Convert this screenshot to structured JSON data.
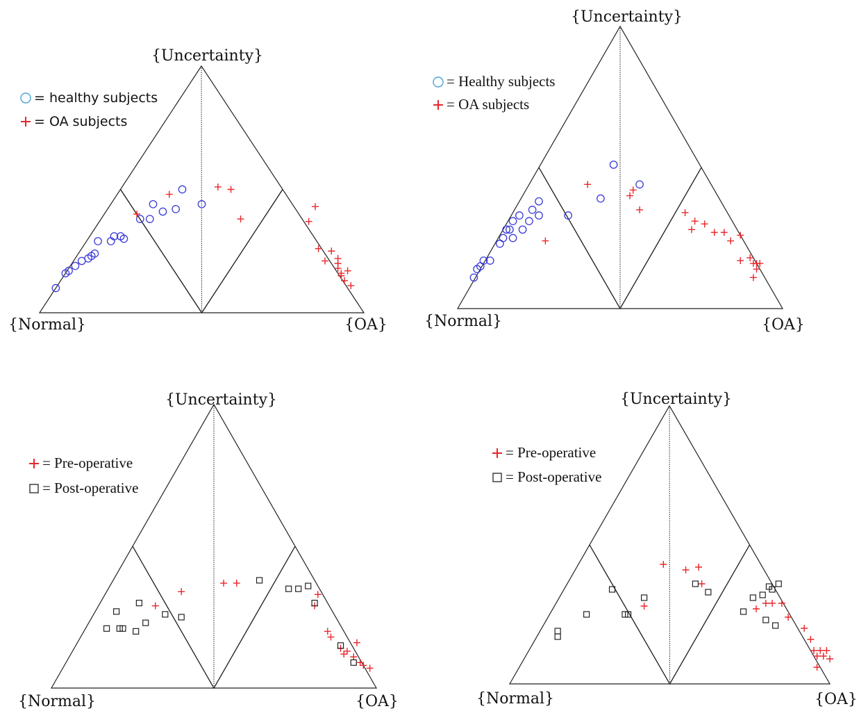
{
  "colors": {
    "healthy": "#3b3bd9",
    "healthy_legend": "#4aa3d9",
    "oa": "#e8262a",
    "post": "#222222",
    "frame": "#222222"
  },
  "chart_data": [
    {
      "type": "scatter",
      "coordinate_system": "ternary (Normal, Uncertainty, OA)",
      "vertex_labels": {
        "left": "{Normal}",
        "top": "{Uncertainty}",
        "right": "{OA}"
      },
      "legend": [
        {
          "symbol": "circle-icon",
          "text": "= healthy subjects"
        },
        {
          "symbol": "plus-icon",
          "text": "= OA subjects"
        }
      ],
      "series": [
        {
          "name": "healthy subjects",
          "marker": "circle",
          "points": [
            [
              0.05,
              0.1
            ],
            [
              0.08,
              0.16
            ],
            [
              0.09,
              0.17
            ],
            [
              0.11,
              0.19
            ],
            [
              0.13,
              0.21
            ],
            [
              0.15,
              0.22
            ],
            [
              0.16,
              0.23
            ],
            [
              0.17,
              0.24
            ],
            [
              0.18,
              0.29
            ],
            [
              0.22,
              0.29
            ],
            [
              0.23,
              0.31
            ],
            [
              0.25,
              0.31
            ],
            [
              0.26,
              0.3
            ],
            [
              0.31,
              0.38
            ],
            [
              0.34,
              0.38
            ],
            [
              0.35,
              0.44
            ],
            [
              0.38,
              0.41
            ],
            [
              0.42,
              0.42
            ],
            [
              0.44,
              0.5
            ],
            [
              0.5,
              0.44
            ]
          ]
        },
        {
          "name": "OA subjects",
          "marker": "plus",
          "points": [
            [
              0.3,
              0.4
            ],
            [
              0.4,
              0.48
            ],
            [
              0.55,
              0.51
            ],
            [
              0.59,
              0.5
            ],
            [
              0.62,
              0.38
            ],
            [
              0.83,
              0.37
            ],
            [
              0.85,
              0.43
            ],
            [
              0.86,
              0.26
            ],
            [
              0.9,
              0.25
            ],
            [
              0.88,
              0.21
            ],
            [
              0.92,
              0.22
            ],
            [
              0.93,
              0.16
            ],
            [
              0.93,
              0.15
            ],
            [
              0.94,
              0.13
            ],
            [
              0.95,
              0.17
            ],
            [
              0.92,
              0.18
            ],
            [
              0.96,
              0.11
            ],
            [
              0.92,
              0.2
            ]
          ]
        }
      ]
    },
    {
      "type": "scatter",
      "coordinate_system": "ternary (Normal, Uncertainty, OA)",
      "vertex_labels": {
        "left": "{Normal}",
        "top": "{Uncertainty}",
        "right": "{OA}"
      },
      "legend": [
        {
          "symbol": "circle-icon",
          "text": "= Healthy subjects"
        },
        {
          "symbol": "plus-icon",
          "text": "= OA subjects"
        }
      ],
      "series": [
        {
          "name": "Healthy subjects",
          "marker": "circle",
          "points": [
            [
              0.05,
              0.11
            ],
            [
              0.06,
              0.14
            ],
            [
              0.07,
              0.15
            ],
            [
              0.08,
              0.17
            ],
            [
              0.1,
              0.17
            ],
            [
              0.13,
              0.23
            ],
            [
              0.15,
              0.28
            ],
            [
              0.14,
              0.25
            ],
            [
              0.16,
              0.28
            ],
            [
              0.17,
              0.25
            ],
            [
              0.17,
              0.31
            ],
            [
              0.19,
              0.33
            ],
            [
              0.2,
              0.28
            ],
            [
              0.22,
              0.31
            ],
            [
              0.23,
              0.35
            ],
            [
              0.25,
              0.33
            ],
            [
              0.25,
              0.38
            ],
            [
              0.34,
              0.33
            ],
            [
              0.44,
              0.39
            ],
            [
              0.48,
              0.51
            ],
            [
              0.56,
              0.44
            ]
          ]
        },
        {
          "name": "OA subjects",
          "marker": "plus",
          "points": [
            [
              0.27,
              0.24
            ],
            [
              0.4,
              0.44
            ],
            [
              0.53,
              0.4
            ],
            [
              0.54,
              0.42
            ],
            [
              0.56,
              0.35
            ],
            [
              0.7,
              0.34
            ],
            [
              0.72,
              0.28
            ],
            [
              0.73,
              0.31
            ],
            [
              0.76,
              0.3
            ],
            [
              0.79,
              0.27
            ],
            [
              0.82,
              0.27
            ],
            [
              0.84,
              0.24
            ],
            [
              0.87,
              0.26
            ],
            [
              0.87,
              0.17
            ],
            [
              0.9,
              0.18
            ],
            [
              0.91,
              0.16
            ],
            [
              0.93,
              0.16
            ],
            [
              0.92,
              0.16
            ],
            [
              0.92,
              0.14
            ],
            [
              0.91,
              0.11
            ]
          ]
        }
      ]
    },
    {
      "type": "scatter",
      "coordinate_system": "ternary (Normal, Uncertainty, OA)",
      "vertex_labels": {
        "left": "{Normal}",
        "top": "{Uncertainty}",
        "right": "{OA}"
      },
      "legend": [
        {
          "symbol": "plus-icon",
          "text": "= Pre-operative"
        },
        {
          "symbol": "square-icon",
          "text": "= Post-operative"
        }
      ],
      "series": [
        {
          "name": "Pre-operative",
          "marker": "plus",
          "points": [
            [
              0.32,
              0.29
            ],
            [
              0.4,
              0.34
            ],
            [
              0.53,
              0.37
            ],
            [
              0.57,
              0.37
            ],
            [
              0.82,
              0.33
            ],
            [
              0.81,
              0.29
            ],
            [
              0.85,
              0.2
            ],
            [
              0.86,
              0.18
            ],
            [
              0.89,
              0.14
            ],
            [
              0.9,
              0.12
            ],
            [
              0.91,
              0.13
            ],
            [
              0.93,
              0.11
            ],
            [
              0.95,
              0.09
            ],
            [
              0.96,
              0.08
            ],
            [
              0.98,
              0.07
            ],
            [
              0.94,
              0.16
            ]
          ]
        },
        {
          "name": "Post-operative",
          "marker": "square",
          "points": [
            [
              0.2,
              0.27
            ],
            [
              0.17,
              0.21
            ],
            [
              0.21,
              0.21
            ],
            [
              0.22,
              0.21
            ],
            [
              0.26,
              0.2
            ],
            [
              0.29,
              0.23
            ],
            [
              0.27,
              0.3
            ],
            [
              0.35,
              0.26
            ],
            [
              0.4,
              0.25
            ],
            [
              0.64,
              0.38
            ],
            [
              0.73,
              0.35
            ],
            [
              0.76,
              0.35
            ],
            [
              0.79,
              0.36
            ],
            [
              0.81,
              0.3
            ],
            [
              0.89,
              0.15
            ],
            [
              0.93,
              0.09
            ]
          ]
        }
      ]
    },
    {
      "type": "scatter",
      "coordinate_system": "ternary (Normal, Uncertainty, OA)",
      "vertex_labels": {
        "left": "{Normal}",
        "top": "{Uncertainty}",
        "right": "{OA}"
      },
      "legend": [
        {
          "symbol": "plus-icon",
          "text": "= Pre-operative"
        },
        {
          "symbol": "square-icon",
          "text": "= Post-operative"
        }
      ],
      "series": [
        {
          "name": "Pre-operative",
          "marker": "plus",
          "points": [
            [
              0.42,
              0.28
            ],
            [
              0.48,
              0.43
            ],
            [
              0.55,
              0.41
            ],
            [
              0.59,
              0.42
            ],
            [
              0.6,
              0.36
            ],
            [
              0.77,
              0.27
            ],
            [
              0.8,
              0.29
            ],
            [
              0.82,
              0.29
            ],
            [
              0.85,
              0.29
            ],
            [
              0.87,
              0.24
            ],
            [
              0.92,
              0.2
            ],
            [
              0.94,
              0.16
            ],
            [
              0.95,
              0.12
            ],
            [
              0.96,
              0.1
            ],
            [
              0.97,
              0.12
            ],
            [
              0.98,
              0.1
            ],
            [
              0.99,
              0.12
            ],
            [
              1.0,
              0.09
            ],
            [
              0.96,
              0.06
            ]
          ]
        },
        {
          "name": "Post-operative",
          "marker": "square",
          "points": [
            [
              0.15,
              0.17
            ],
            [
              0.15,
              0.19
            ],
            [
              0.24,
              0.25
            ],
            [
              0.32,
              0.34
            ],
            [
              0.36,
              0.25
            ],
            [
              0.37,
              0.25
            ],
            [
              0.42,
              0.31
            ],
            [
              0.58,
              0.36
            ],
            [
              0.62,
              0.33
            ],
            [
              0.76,
              0.31
            ],
            [
              0.79,
              0.32
            ],
            [
              0.81,
              0.35
            ],
            [
              0.82,
              0.34
            ],
            [
              0.84,
              0.36
            ],
            [
              0.8,
              0.23
            ],
            [
              0.83,
              0.21
            ],
            [
              0.73,
              0.26
            ]
          ]
        }
      ]
    }
  ]
}
